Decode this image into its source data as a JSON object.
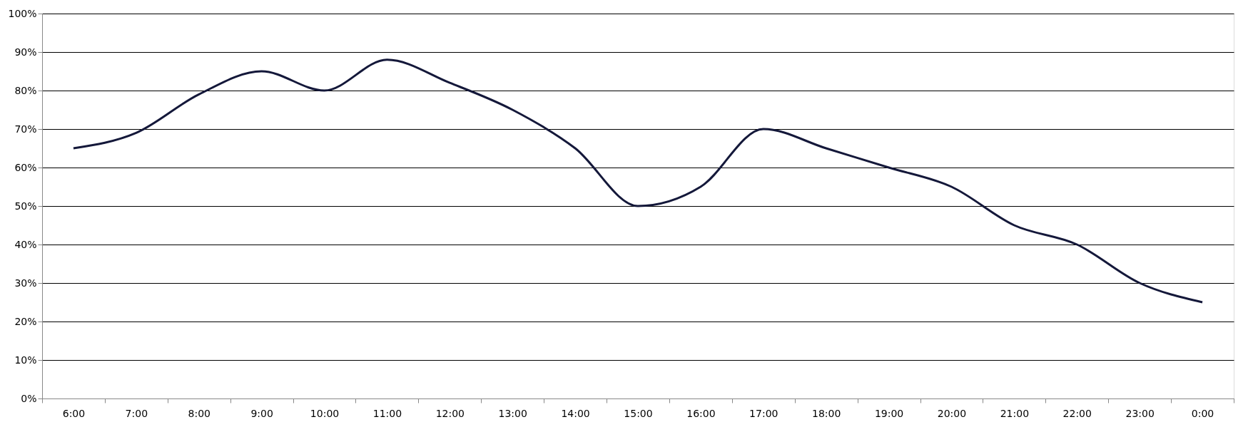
{
  "chart_data": {
    "type": "line",
    "categories": [
      "6:00",
      "7:00",
      "8:00",
      "9:00",
      "10:00",
      "11:00",
      "12:00",
      "13:00",
      "14:00",
      "15:00",
      "16:00",
      "17:00",
      "18:00",
      "19:00",
      "20:00",
      "21:00",
      "22:00",
      "23:00",
      "0:00"
    ],
    "series": [
      {
        "color": "#14183a",
        "values": [
          65,
          69,
          79,
          85,
          80,
          88,
          82,
          75,
          65,
          50,
          55,
          70,
          65,
          60,
          55,
          45,
          40,
          30,
          25
        ]
      }
    ],
    "ylim": [
      0,
      100
    ],
    "yticks": [
      {
        "value": 0,
        "label": "0%"
      },
      {
        "value": 10,
        "label": "10%"
      },
      {
        "value": 20,
        "label": "20%"
      },
      {
        "value": 30,
        "label": "30%"
      },
      {
        "value": 40,
        "label": "40%"
      },
      {
        "value": 50,
        "label": "50%"
      },
      {
        "value": 60,
        "label": "60%"
      },
      {
        "value": 70,
        "label": "70%"
      },
      {
        "value": 80,
        "label": "80%"
      },
      {
        "value": 90,
        "label": "90%"
      },
      {
        "value": 100,
        "label": "100%"
      }
    ],
    "grid": "y",
    "marker": "none",
    "line_style": "solid"
  }
}
